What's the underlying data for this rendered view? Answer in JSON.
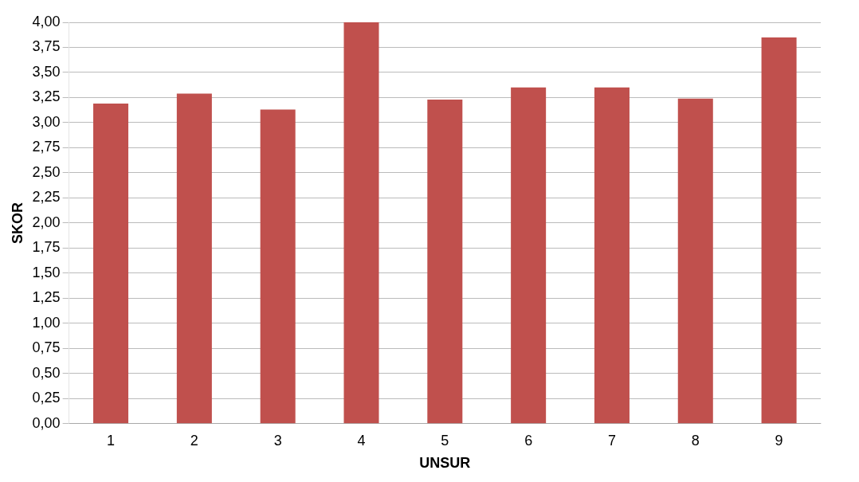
{
  "chart_data": {
    "type": "bar",
    "xlabel": "UNSUR",
    "ylabel": "SKOR",
    "categories": [
      "1",
      "2",
      "3",
      "4",
      "5",
      "6",
      "7",
      "8",
      "9"
    ],
    "values": [
      3.19,
      3.29,
      3.13,
      4.0,
      3.23,
      3.35,
      3.35,
      3.24,
      3.85
    ],
    "color": "#c0504d",
    "ylim": [
      0,
      4
    ],
    "yticks": [
      {
        "value": 0,
        "label": "0,00"
      },
      {
        "value": 0.25,
        "label": "0,25"
      },
      {
        "value": 0.5,
        "label": "0,50"
      },
      {
        "value": 0.75,
        "label": "0,75"
      },
      {
        "value": 1,
        "label": "1,00"
      },
      {
        "value": 1.25,
        "label": "1,25"
      },
      {
        "value": 1.5,
        "label": "1,50"
      },
      {
        "value": 1.75,
        "label": "1,75"
      },
      {
        "value": 2,
        "label": "2,00"
      },
      {
        "value": 2.25,
        "label": "2,25"
      },
      {
        "value": 2.5,
        "label": "2,50"
      },
      {
        "value": 2.75,
        "label": "2,75"
      },
      {
        "value": 3,
        "label": "3,00"
      },
      {
        "value": 3.25,
        "label": "3,25"
      },
      {
        "value": 3.5,
        "label": "3,50"
      },
      {
        "value": 3.75,
        "label": "3,75"
      },
      {
        "value": 4,
        "label": "4,00"
      }
    ],
    "grid": "y",
    "legend": false
  }
}
